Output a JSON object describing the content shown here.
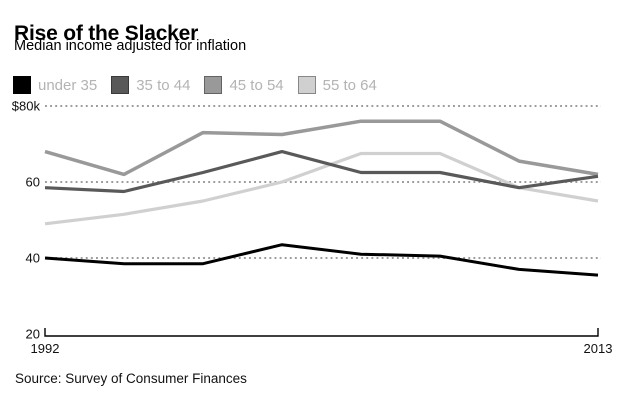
{
  "header": {
    "title": "Rise of the Slacker",
    "subtitle": "Median income adjusted for inflation"
  },
  "source": "Source: Survey of Consumer Finances",
  "colors": {
    "grid_dotted": "#9c9c9c",
    "axis": "#000000",
    "tick_label": "#111111",
    "legend_label": "#b3b3b3"
  },
  "chart_data": {
    "type": "line",
    "x": [
      1992,
      1995,
      1998,
      2001,
      2004,
      2007,
      2010,
      2013
    ],
    "x_tick_labels": [
      "1992",
      "2013"
    ],
    "series": [
      {
        "name": "under 35",
        "color": "#000000",
        "stroke_width": 3,
        "values": [
          40,
          38.5,
          38.5,
          43.5,
          41,
          40.5,
          37,
          35.5
        ]
      },
      {
        "name": "35 to 44",
        "color": "#595959",
        "stroke_width": 3.2,
        "values": [
          58.5,
          57.5,
          62.5,
          68,
          62.5,
          62.5,
          58.5,
          61.5
        ]
      },
      {
        "name": "45 to 54",
        "color": "#999999",
        "stroke_width": 3.5,
        "values": [
          68,
          62,
          73,
          72.5,
          76,
          76,
          65.5,
          62
        ]
      },
      {
        "name": "55 to 64",
        "color": "#d0d0d0",
        "stroke_width": 3.2,
        "values": [
          49,
          51.5,
          55,
          60,
          67.5,
          67.5,
          58.5,
          55
        ]
      }
    ],
    "y_ticks": [
      {
        "label": "$80k",
        "value": 80,
        "dotted": true
      },
      {
        "label": "60",
        "value": 60,
        "dotted": true
      },
      {
        "label": "40",
        "value": 40,
        "dotted": true
      },
      {
        "label": "20",
        "value": 20,
        "dotted": false
      }
    ],
    "ylim": [
      20,
      80
    ],
    "xlabel": "",
    "ylabel": "",
    "grid": "horizontal dotted lines at 80, 60, 40",
    "legend_position": "top"
  }
}
